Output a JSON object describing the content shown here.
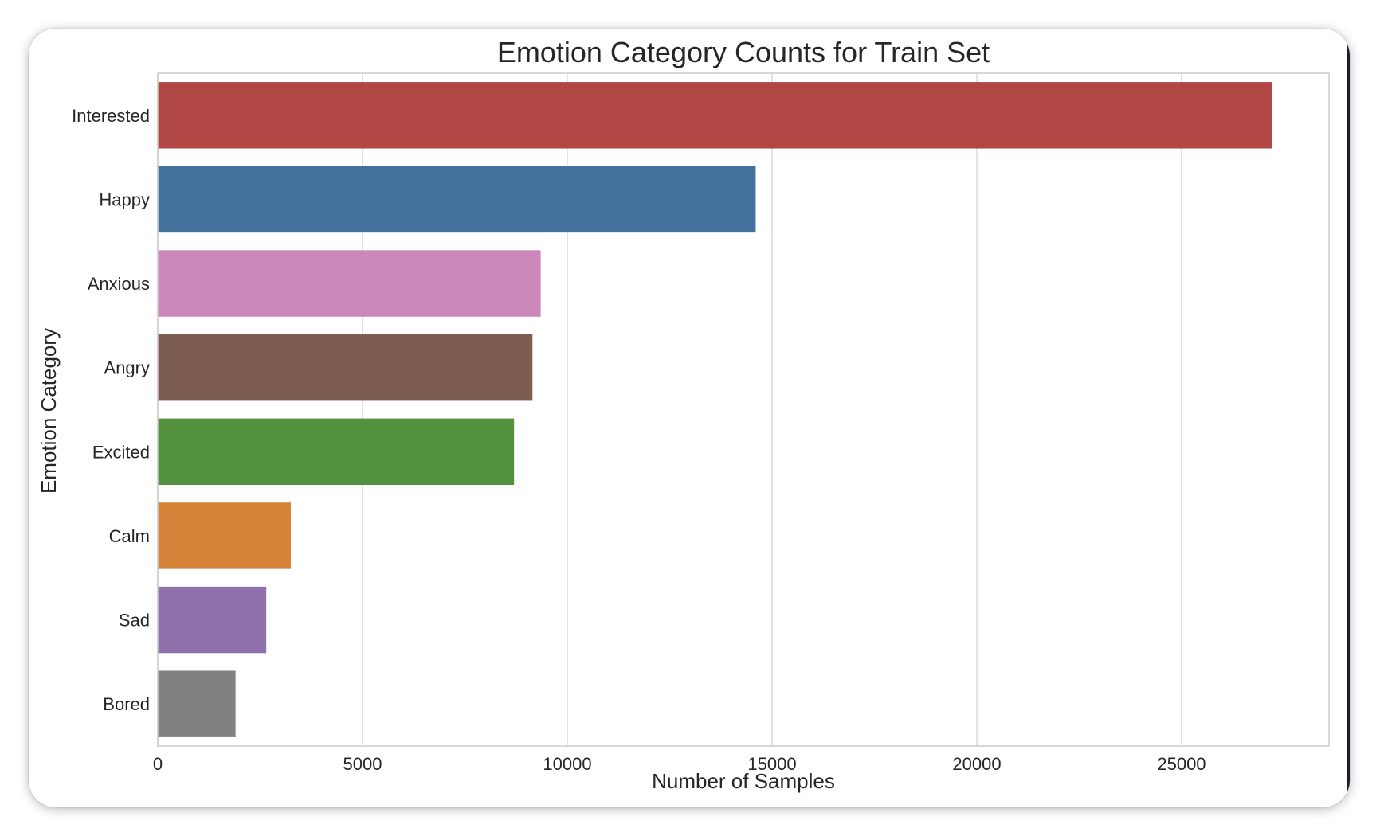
{
  "chart_data": {
    "type": "bar",
    "orientation": "horizontal",
    "title": "Emotion Category Counts for Train Set",
    "xlabel": "Number of Samples",
    "ylabel": "Emotion Category",
    "categories": [
      "Interested",
      "Happy",
      "Anxious",
      "Angry",
      "Excited",
      "Calm",
      "Sad",
      "Bored"
    ],
    "values": [
      27200,
      14600,
      9350,
      9150,
      8700,
      3250,
      2650,
      1900
    ],
    "colors": [
      "#b04744",
      "#43739c",
      "#cc87ba",
      "#7d5c52",
      "#54913f",
      "#d7843b",
      "#9071ac",
      "#818181"
    ],
    "xlim": [
      0,
      28600
    ],
    "xticks": [
      0,
      5000,
      10000,
      15000,
      20000,
      25000
    ],
    "xtick_labels": [
      "0",
      "5000",
      "10000",
      "15000",
      "20000",
      "25000"
    ],
    "grid": true,
    "grid_color": "#d9d9d9",
    "legend": "none"
  }
}
